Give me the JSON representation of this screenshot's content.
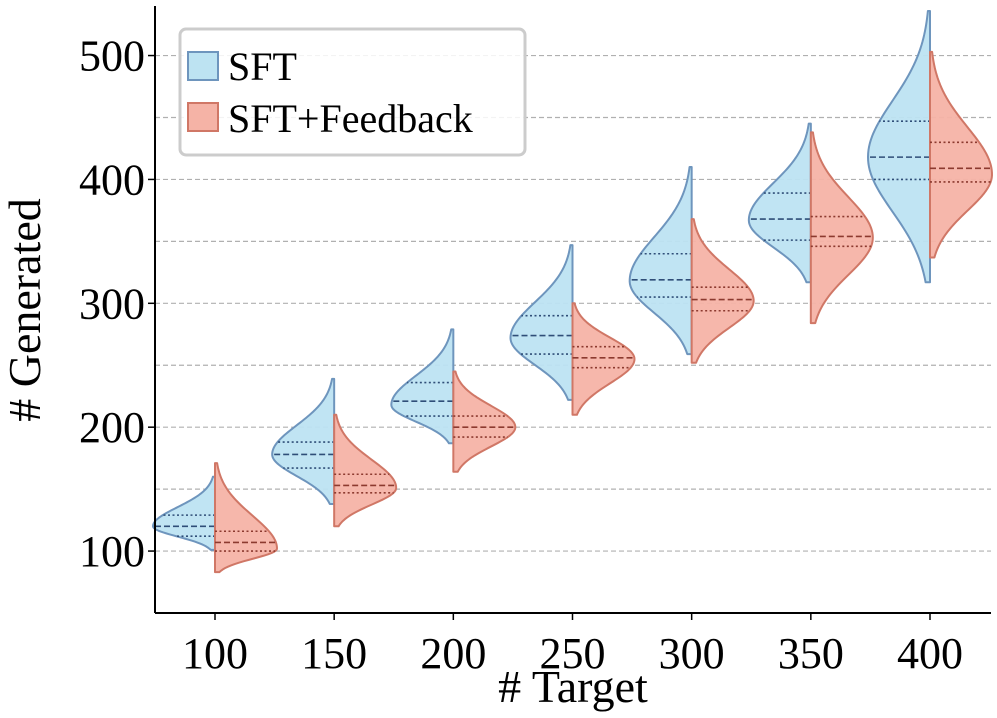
{
  "chart_data": {
    "type": "violin",
    "xlabel": "# Target",
    "ylabel": "# Generated",
    "categories": [
      "100",
      "150",
      "200",
      "250",
      "300",
      "350",
      "400"
    ],
    "x": [
      100,
      150,
      200,
      250,
      300,
      350,
      400
    ],
    "ylim": [
      50,
      540
    ],
    "yticks": [
      100,
      200,
      300,
      400,
      500
    ],
    "grid": "horizontal dashed every 50",
    "legend": {
      "position": "top-left"
    },
    "series": [
      {
        "name": "SFT",
        "color": "#bde3f2",
        "edge": "#6e95bd",
        "side": "left",
        "violins": [
          {
            "x": 100,
            "min": 101,
            "max": 160,
            "mode": 120,
            "q1": 112,
            "median": 120,
            "q3": 129
          },
          {
            "x": 150,
            "min": 138,
            "max": 239,
            "mode": 178,
            "q1": 167,
            "median": 178,
            "q3": 188
          },
          {
            "x": 200,
            "min": 187,
            "max": 279,
            "mode": 218,
            "q1": 209,
            "median": 221,
            "q3": 236
          },
          {
            "x": 250,
            "min": 222,
            "max": 347,
            "mode": 272,
            "q1": 259,
            "median": 274,
            "q3": 290
          },
          {
            "x": 300,
            "min": 259,
            "max": 410,
            "mode": 318,
            "q1": 305,
            "median": 319,
            "q3": 340
          },
          {
            "x": 350,
            "min": 317,
            "max": 445,
            "mode": 367,
            "q1": 351,
            "median": 368,
            "q3": 389
          },
          {
            "x": 400,
            "min": 317,
            "max": 536,
            "mode": 418,
            "q1": 400,
            "median": 418,
            "q3": 447
          }
        ]
      },
      {
        "name": "SFT+Feedback",
        "color": "#f5b3a6",
        "edge": "#d07766",
        "side": "right",
        "violins": [
          {
            "x": 100,
            "min": 83,
            "max": 171,
            "mode": 102,
            "q1": 100,
            "median": 107,
            "q3": 116
          },
          {
            "x": 150,
            "min": 120,
            "max": 210,
            "mode": 151,
            "q1": 147,
            "median": 153,
            "q3": 162
          },
          {
            "x": 200,
            "min": 164,
            "max": 245,
            "mode": 200,
            "q1": 192,
            "median": 200,
            "q3": 209
          },
          {
            "x": 250,
            "min": 210,
            "max": 300,
            "mode": 255,
            "q1": 248,
            "median": 256,
            "q3": 265
          },
          {
            "x": 300,
            "min": 252,
            "max": 368,
            "mode": 302,
            "q1": 294,
            "median": 303,
            "q3": 313
          },
          {
            "x": 350,
            "min": 284,
            "max": 438,
            "mode": 353,
            "q1": 346,
            "median": 354,
            "q3": 370
          },
          {
            "x": 400,
            "min": 337,
            "max": 503,
            "mode": 404,
            "q1": 398,
            "median": 409,
            "q3": 430
          }
        ]
      }
    ]
  }
}
